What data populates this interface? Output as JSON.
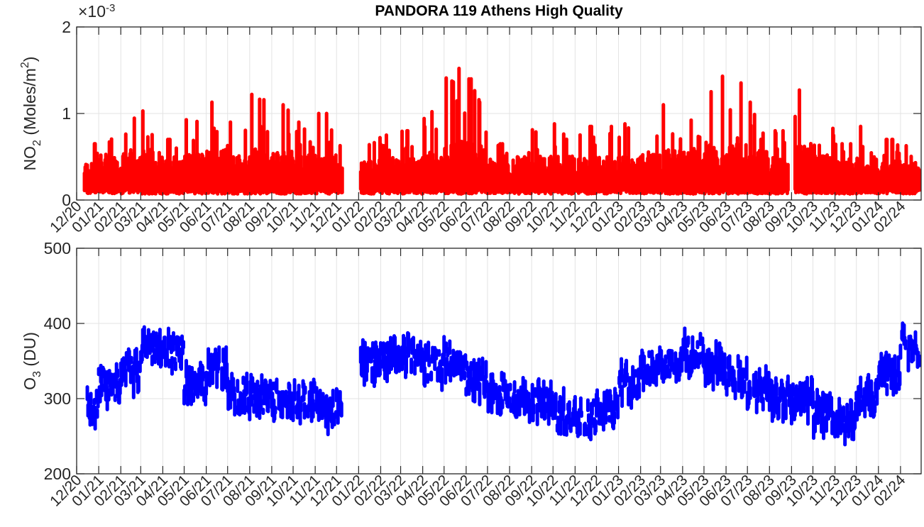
{
  "chart_data": [
    {
      "type": "scatter",
      "title": "PANDORA 119 Athens High Quality",
      "ylabel": "NO2 (Moles/m2)",
      "ylabel_main": "NO",
      "ylabel_sub": "2",
      "ylabel_rest": " (Moles/m",
      "ylabel_sup": "2",
      "ylabel_close": ")",
      "exponent_label": "×10",
      "exponent_power": "-3",
      "ylim": [
        0,
        2
      ],
      "yticks": [
        "0",
        "1",
        "2"
      ],
      "ytick_values": [
        0,
        1,
        2
      ],
      "color": "#ff0000",
      "grid": true,
      "monthly_peak_e-3": [
        0.65,
        0.9,
        0.95,
        1.08,
        0.7,
        0.95,
        1.13,
        0.9,
        1.22,
        1.1,
        0.9,
        1.0,
        0.7,
        0.72,
        0.75,
        0.8,
        1.02,
        1.52,
        1.4,
        0.65,
        0.85,
        0.88,
        0.88,
        0.85,
        0.85,
        0.88,
        0.95,
        1.1,
        1.05,
        1.43,
        1.38,
        1.13,
        0.8,
        1.27,
        0.9,
        0.65,
        0.85,
        0.7,
        0.65
      ],
      "typical_min_e-3": 0.08
    },
    {
      "type": "scatter",
      "ylabel": "O3 (DU)",
      "ylabel_main": "O",
      "ylabel_sub": "3",
      "ylabel_rest": " (DU)",
      "ylim": [
        200,
        500
      ],
      "yticks": [
        "200",
        "300",
        "400",
        "500"
      ],
      "ytick_values": [
        200,
        300,
        400,
        500
      ],
      "color": "#0000ff",
      "grid": true,
      "monthly_mean_DU": [
        290,
        320,
        335,
        370,
        360,
        320,
        340,
        305,
        300,
        298,
        300,
        285,
        295,
        345,
        350,
        360,
        345,
        350,
        325,
        310,
        300,
        295,
        280,
        275,
        285,
        320,
        340,
        345,
        360,
        345,
        330,
        310,
        300,
        300,
        280,
        270,
        300,
        330,
        370
      ]
    }
  ],
  "x_axis": {
    "start": "2020-12-01",
    "end": "2024-03-01",
    "tick_labels": [
      "12/20",
      "01/21",
      "02/21",
      "03/21",
      "04/21",
      "05/21",
      "06/21",
      "07/21",
      "08/21",
      "09/21",
      "10/21",
      "11/21",
      "12/21",
      "01/22",
      "02/22",
      "03/22",
      "04/22",
      "05/22",
      "06/22",
      "07/22",
      "08/22",
      "09/22",
      "10/22",
      "11/22",
      "12/22",
      "01/23",
      "02/23",
      "03/23",
      "04/23",
      "05/23",
      "06/23",
      "07/23",
      "08/23",
      "09/23",
      "10/23",
      "11/23",
      "12/23",
      "01/24",
      "02/24"
    ],
    "data_start_day": 11,
    "gaps_days": [
      [
        374,
        398
      ]
    ],
    "no2_extra_gap_days": [
      [
        1000,
        1008
      ]
    ]
  }
}
